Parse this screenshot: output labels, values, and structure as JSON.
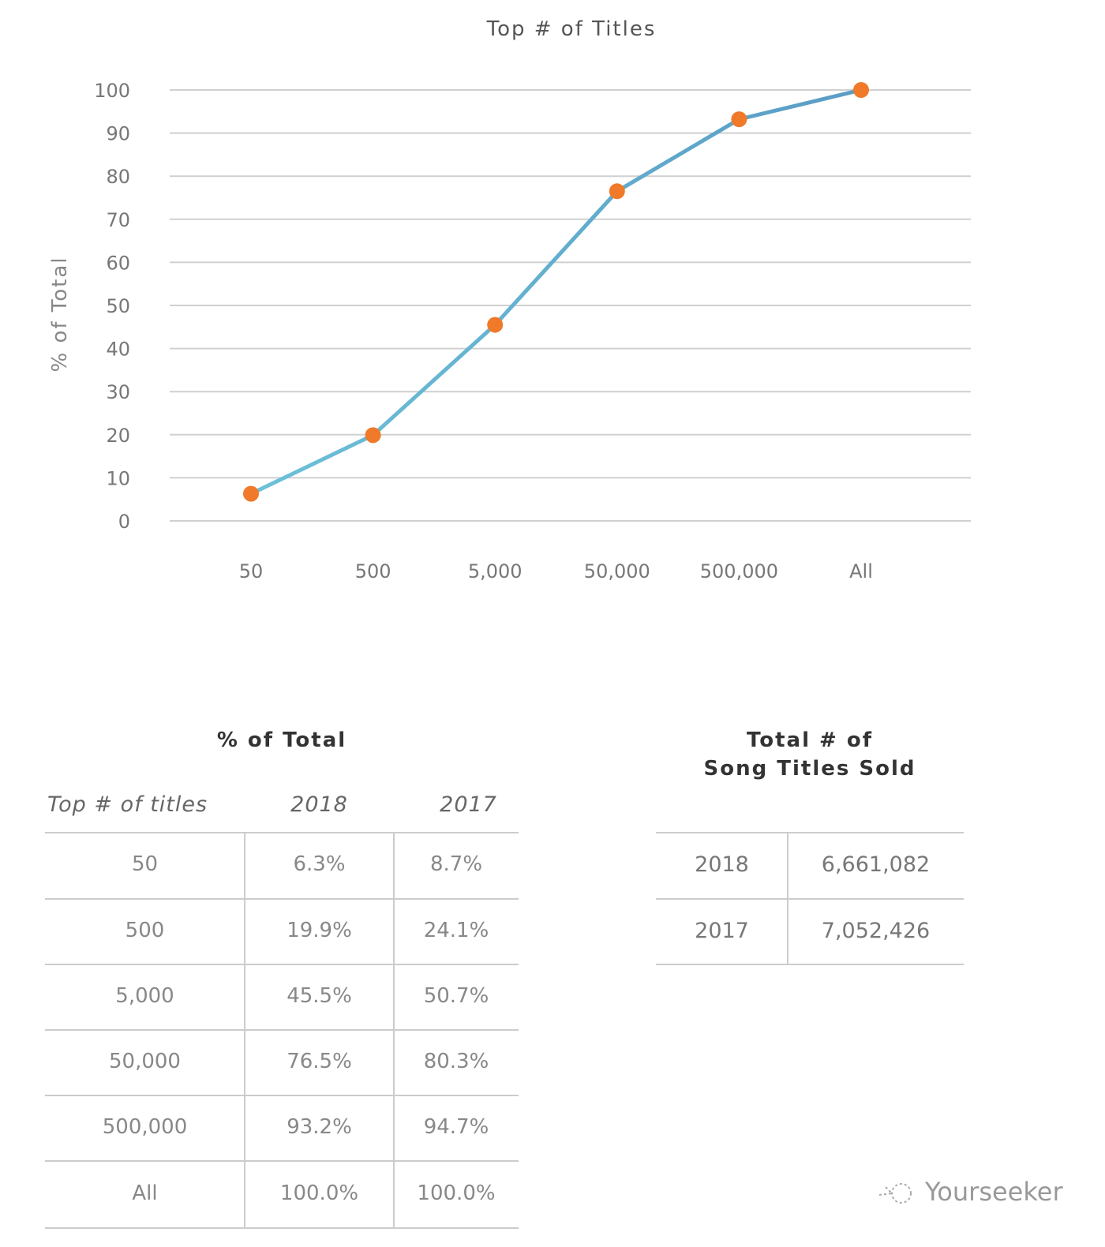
{
  "chart_data": {
    "type": "line",
    "title": "Top # of Titles",
    "ylabel": "% of Total",
    "xlabel": "",
    "categories": [
      "50",
      "500",
      "5,000",
      "50,000",
      "500,000",
      "All"
    ],
    "values": [
      6.3,
      19.9,
      45.5,
      76.5,
      93.2,
      100.0
    ],
    "ylim": [
      0,
      100
    ],
    "yticks": [
      "0",
      "10",
      "20",
      "30",
      "40",
      "50",
      "60",
      "70",
      "80",
      "90",
      "100"
    ],
    "grid": true,
    "line_color_start": "#6cc1d9",
    "line_color_end": "#5a9cc5",
    "marker_color": "#f07a2a"
  },
  "pct_table": {
    "title": "% of Total",
    "headers": [
      "Top # of titles",
      "2018",
      "2017"
    ],
    "rows": [
      [
        "50",
        "6.3%",
        "8.7%"
      ],
      [
        "500",
        "19.9%",
        "24.1%"
      ],
      [
        "5,000",
        "45.5%",
        "50.7%"
      ],
      [
        "50,000",
        "76.5%",
        "80.3%"
      ],
      [
        "500,000",
        "93.2%",
        "94.7%"
      ],
      [
        "All",
        "100.0%",
        "100.0%"
      ]
    ]
  },
  "total_table": {
    "title_line1": "Total # of",
    "title_line2": "Song Titles Sold",
    "rows": [
      [
        "2018",
        "6,661,082"
      ],
      [
        "2017",
        "7,052,426"
      ]
    ]
  },
  "watermark": "Yourseeker"
}
